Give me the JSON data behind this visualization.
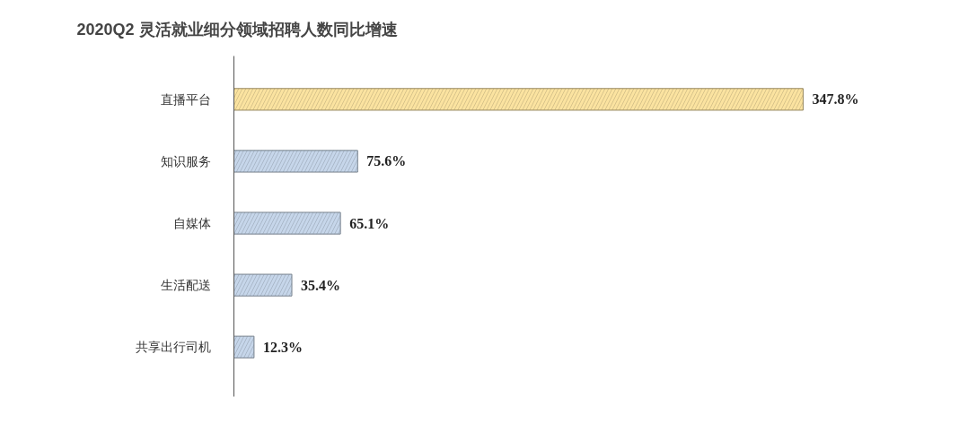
{
  "chart_data": {
    "type": "bar",
    "orientation": "horizontal",
    "title": "2020Q2 灵活就业细分领域招聘人数同比增速",
    "categories": [
      "直播平台",
      "知识服务",
      "自媒体",
      "生活配送",
      "共享出行司机"
    ],
    "values": [
      347.8,
      75.6,
      65.1,
      35.4,
      12.3
    ],
    "value_labels": [
      "347.8%",
      "75.6%",
      "65.1%",
      "35.4%",
      "12.3%"
    ],
    "colors": [
      "#fbe3a0",
      "#c6d6ea",
      "#c6d6ea",
      "#c6d6ea",
      "#c6d6ea"
    ],
    "grid": false
  }
}
